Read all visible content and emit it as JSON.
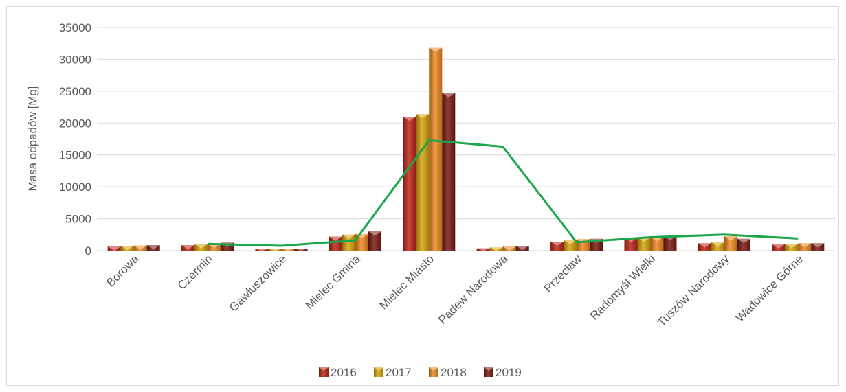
{
  "chart_data": {
    "type": "bar",
    "title": "",
    "xlabel": "",
    "ylabel": "Masa odpadów [Mg]",
    "ylim": [
      0,
      35000
    ],
    "yticks": [
      0,
      5000,
      10000,
      15000,
      20000,
      25000,
      30000,
      35000
    ],
    "grid": true,
    "legend_position": "bottom",
    "categories": [
      "Borowa",
      "Czermin",
      "Gawłuszowice",
      "Mielec Gmina",
      "Mielec Miasto",
      "Padew Narodowa",
      "Przecław",
      "Radomyśl Wielki",
      "Tuszów Narodowy",
      "Wadowice Górne"
    ],
    "series": [
      {
        "name": "2016",
        "color": "#c0281a",
        "values": [
          650,
          850,
          250,
          2200,
          21000,
          350,
          1400,
          2000,
          1150,
          1000
        ]
      },
      {
        "name": "2017",
        "color": "#d9a70f",
        "values": [
          750,
          1000,
          300,
          2500,
          21400,
          500,
          1650,
          2050,
          1300,
          1050
        ]
      },
      {
        "name": "2018",
        "color": "#f08a24",
        "values": [
          800,
          1050,
          300,
          2600,
          31800,
          650,
          1800,
          2150,
          2250,
          1150
        ]
      },
      {
        "name": "2019",
        "color": "#7a1c12",
        "values": [
          850,
          1250,
          300,
          3000,
          24700,
          750,
          1850,
          2300,
          1850,
          1150
        ]
      }
    ],
    "trendline": {
      "color": "#1aa64a",
      "x": [
        "Czermin",
        "Gawłuszowice",
        "Mielec Gmina",
        "Mielec Miasto",
        "Padew Narodowa",
        "Przecław",
        "Radomyśl Wielki",
        "Tuszów Narodowy",
        "Wadowice Górne"
      ],
      "y": [
        1050,
        750,
        1600,
        17300,
        16300,
        1300,
        2100,
        2500,
        1900
      ]
    }
  }
}
